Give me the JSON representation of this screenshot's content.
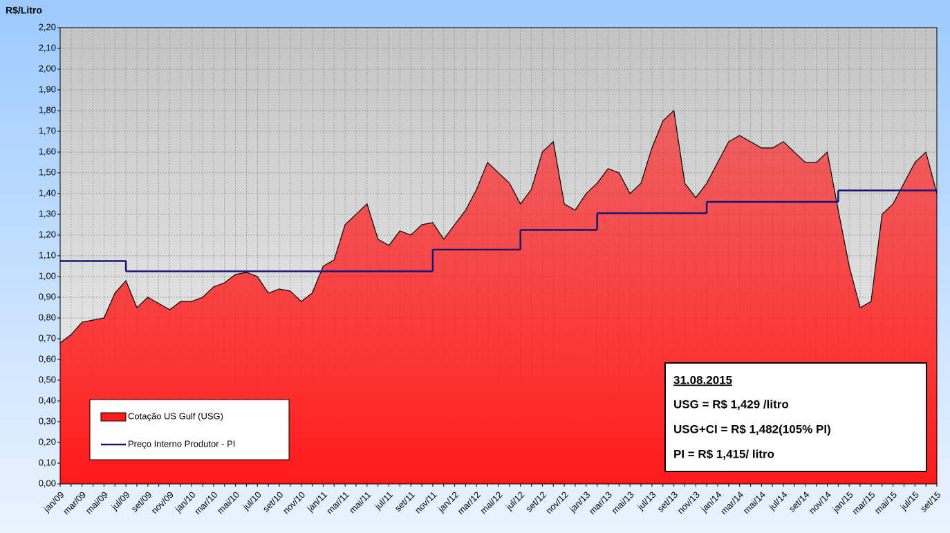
{
  "chart_data": {
    "type": "area",
    "y_label": "R$/Litro",
    "categories": [
      "jan/09",
      null,
      "mar/09",
      null,
      "mai/09",
      null,
      "jul/09",
      null,
      "set/09",
      null,
      "nov/09",
      null,
      "jan/10",
      null,
      "mar/10",
      null,
      "mai/10",
      null,
      "jul/10",
      null,
      "set/10",
      null,
      "nov/10",
      null,
      "jan/11",
      null,
      "mar/11",
      null,
      "mai/11",
      null,
      "jul/11",
      null,
      "set/11",
      null,
      "nov/11",
      null,
      "jan/12",
      null,
      "mar/12",
      null,
      "mai/12",
      null,
      "jul/12",
      null,
      "set/12",
      null,
      "nov/12",
      null,
      "jan/13",
      null,
      "mar/13",
      null,
      "mai/13",
      null,
      "jul/13",
      null,
      "set/13",
      null,
      "nov/13",
      null,
      "jan/14",
      null,
      "mar/14",
      null,
      "mai/14",
      null,
      "jul/14",
      null,
      "set/14",
      null,
      "nov/14",
      null,
      "jan/15",
      null,
      "mar/15",
      null,
      "mai/15",
      null,
      "jul/15",
      null,
      "set/15"
    ],
    "series": [
      {
        "name": "Cotação US Gulf (USG)",
        "color": "#ff1a1a",
        "kind": "area",
        "values": [
          0.68,
          0.72,
          0.78,
          0.79,
          0.8,
          0.92,
          0.98,
          0.85,
          0.9,
          0.87,
          0.84,
          0.88,
          0.88,
          0.9,
          0.95,
          0.97,
          1.01,
          1.02,
          1.0,
          0.92,
          0.94,
          0.93,
          0.88,
          0.92,
          1.05,
          1.08,
          1.25,
          1.3,
          1.35,
          1.18,
          1.15,
          1.22,
          1.2,
          1.25,
          1.26,
          1.18,
          1.25,
          1.32,
          1.42,
          1.55,
          1.5,
          1.45,
          1.35,
          1.42,
          1.6,
          1.65,
          1.35,
          1.32,
          1.4,
          1.45,
          1.52,
          1.5,
          1.4,
          1.45,
          1.62,
          1.75,
          1.8,
          1.45,
          1.38,
          1.45,
          1.55,
          1.65,
          1.68,
          1.65,
          1.62,
          1.62,
          1.65,
          1.6,
          1.55,
          1.55,
          1.6,
          1.32,
          1.05,
          0.85,
          0.88,
          1.3,
          1.35,
          1.45,
          1.55,
          1.6,
          1.4
        ]
      },
      {
        "name": "Preço Interno Produtor - PI",
        "color": "#141478",
        "kind": "step",
        "values": [
          1.075,
          1.075,
          1.075,
          1.075,
          1.075,
          1.075,
          1.025,
          1.025,
          1.025,
          1.025,
          1.025,
          1.025,
          1.025,
          1.025,
          1.025,
          1.025,
          1.025,
          1.025,
          1.025,
          1.025,
          1.025,
          1.025,
          1.025,
          1.025,
          1.025,
          1.025,
          1.025,
          1.025,
          1.025,
          1.025,
          1.025,
          1.025,
          1.025,
          1.025,
          1.13,
          1.13,
          1.13,
          1.13,
          1.13,
          1.13,
          1.13,
          1.13,
          1.225,
          1.225,
          1.225,
          1.225,
          1.225,
          1.225,
          1.225,
          1.305,
          1.305,
          1.305,
          1.305,
          1.305,
          1.305,
          1.305,
          1.305,
          1.305,
          1.305,
          1.36,
          1.36,
          1.36,
          1.36,
          1.36,
          1.36,
          1.36,
          1.36,
          1.36,
          1.36,
          1.36,
          1.36,
          1.415,
          1.415,
          1.415,
          1.415,
          1.415,
          1.415,
          1.415,
          1.415,
          1.415,
          1.415
        ]
      }
    ],
    "ylim": [
      0,
      2.2
    ],
    "yticks": [
      {
        "value": 0,
        "label": "0,00"
      },
      {
        "value": 0.1,
        "label": "0,10"
      },
      {
        "value": 0.2,
        "label": "0,20"
      },
      {
        "value": 0.3,
        "label": "0,30"
      },
      {
        "value": 0.4,
        "label": "0,40"
      },
      {
        "value": 0.5,
        "label": "0,50"
      },
      {
        "value": 0.6,
        "label": "0,60"
      },
      {
        "value": 0.7,
        "label": "0,70"
      },
      {
        "value": 0.8,
        "label": "0,80"
      },
      {
        "value": 0.9,
        "label": "0,90"
      },
      {
        "value": 1.0,
        "label": "1,00"
      },
      {
        "value": 1.1,
        "label": "1,10"
      },
      {
        "value": 1.2,
        "label": "1,20"
      },
      {
        "value": 1.3,
        "label": "1,30"
      },
      {
        "value": 1.4,
        "label": "1,40"
      },
      {
        "value": 1.5,
        "label": "1,50"
      },
      {
        "value": 1.6,
        "label": "1,60"
      },
      {
        "value": 1.7,
        "label": "1,70"
      },
      {
        "value": 1.8,
        "label": "1,80"
      },
      {
        "value": 1.9,
        "label": "1,90"
      },
      {
        "value": 2.0,
        "label": "2,00"
      },
      {
        "value": 2.1,
        "label": "2,10"
      },
      {
        "value": 2.2,
        "label": "2,20"
      }
    ],
    "grid": true,
    "annotations": [
      "31.08.2015",
      "USG = R$ 1,429 /litro",
      "USG+CI  = R$ 1,482(105% PI)",
      "PI = R$ 1,415/ litro"
    ]
  }
}
